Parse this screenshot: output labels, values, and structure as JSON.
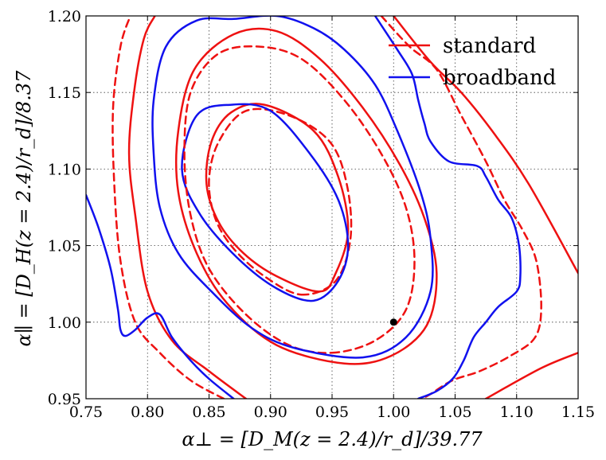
{
  "chart_data": {
    "type": "line",
    "xlabel": "α⊥ = [D_M(z = 2.4)/r_d]/39.77",
    "ylabel": "α∥ = [D_H(z = 2.4)/r_d]/8.37",
    "xlim": [
      0.75,
      1.15
    ],
    "ylim": [
      0.95,
      1.2
    ],
    "xticks": [
      "0.75",
      "0.80",
      "0.85",
      "0.90",
      "0.95",
      "1.00",
      "1.05",
      "1.10",
      "1.15"
    ],
    "yticks": [
      "0.95",
      "1.00",
      "1.05",
      "1.10",
      "1.15",
      "1.20"
    ],
    "grid": true,
    "legend_position": "top-right",
    "legend": [
      {
        "label": "standard",
        "color": "#ee1111"
      },
      {
        "label": "broadband",
        "color": "#1111ee"
      }
    ],
    "marker": {
      "x": 1.0,
      "y": 1.0,
      "color": "#000000"
    },
    "series": [
      {
        "name": "standard",
        "color": "#ee1111",
        "dashed": false,
        "points": [
          [
            0.94,
            1.02
          ],
          [
            0.953,
            1.032
          ],
          [
            0.963,
            1.06
          ],
          [
            0.955,
            1.095
          ],
          [
            0.935,
            1.125
          ],
          [
            0.895,
            1.142
          ],
          [
            0.868,
            1.137
          ],
          [
            0.852,
            1.118
          ],
          [
            0.848,
            1.09
          ],
          [
            0.858,
            1.065
          ],
          [
            0.878,
            1.045
          ],
          [
            0.905,
            1.03
          ],
          [
            0.94,
            1.02
          ]
        ]
      },
      {
        "name": "standard",
        "color": "#ee1111",
        "dashed": true,
        "points": [
          [
            0.925,
            1.018
          ],
          [
            0.953,
            1.027
          ],
          [
            0.965,
            1.055
          ],
          [
            0.962,
            1.09
          ],
          [
            0.948,
            1.118
          ],
          [
            0.915,
            1.135
          ],
          [
            0.88,
            1.138
          ],
          [
            0.858,
            1.118
          ],
          [
            0.85,
            1.093
          ],
          [
            0.855,
            1.068
          ],
          [
            0.87,
            1.048
          ],
          [
            0.895,
            1.03
          ],
          [
            0.925,
            1.018
          ]
        ]
      },
      {
        "name": "broadband",
        "color": "#1111ee",
        "dashed": false,
        "points": [
          [
            0.935,
            1.014
          ],
          [
            0.955,
            1.027
          ],
          [
            0.963,
            1.05
          ],
          [
            0.955,
            1.08
          ],
          [
            0.932,
            1.11
          ],
          [
            0.9,
            1.138
          ],
          [
            0.868,
            1.142
          ],
          [
            0.84,
            1.135
          ],
          [
            0.828,
            1.1
          ],
          [
            0.843,
            1.07
          ],
          [
            0.873,
            1.042
          ],
          [
            0.905,
            1.022
          ],
          [
            0.935,
            1.014
          ]
        ]
      },
      {
        "name": "standard",
        "color": "#ee1111",
        "dashed": false,
        "points": [
          [
            0.96,
            0.973
          ],
          [
            0.998,
            0.978
          ],
          [
            1.027,
            0.998
          ],
          [
            1.035,
            1.032
          ],
          [
            1.025,
            1.068
          ],
          [
            1.005,
            1.103
          ],
          [
            0.975,
            1.14
          ],
          [
            0.94,
            1.172
          ],
          [
            0.905,
            1.19
          ],
          [
            0.87,
            1.188
          ],
          [
            0.838,
            1.165
          ],
          [
            0.825,
            1.125
          ],
          [
            0.825,
            1.085
          ],
          [
            0.84,
            1.045
          ],
          [
            0.865,
            1.012
          ],
          [
            0.905,
            0.985
          ],
          [
            0.96,
            0.973
          ]
        ]
      },
      {
        "name": "standard",
        "color": "#ee1111",
        "dashed": true,
        "points": [
          [
            0.95,
            0.98
          ],
          [
            0.985,
            0.988
          ],
          [
            1.01,
            1.008
          ],
          [
            1.017,
            1.04
          ],
          [
            1.01,
            1.075
          ],
          [
            0.99,
            1.11
          ],
          [
            0.96,
            1.145
          ],
          [
            0.925,
            1.172
          ],
          [
            0.89,
            1.18
          ],
          [
            0.857,
            1.175
          ],
          [
            0.835,
            1.15
          ],
          [
            0.83,
            1.11
          ],
          [
            0.835,
            1.07
          ],
          [
            0.85,
            1.035
          ],
          [
            0.88,
            1.005
          ],
          [
            0.915,
            0.985
          ],
          [
            0.95,
            0.98
          ]
        ]
      },
      {
        "name": "broadband",
        "color": "#1111ee",
        "dashed": false,
        "points": [
          [
            0.975,
            0.977
          ],
          [
            1.01,
            0.99
          ],
          [
            1.03,
            1.02
          ],
          [
            1.03,
            1.055
          ],
          [
            1.022,
            1.085
          ],
          [
            1.003,
            1.125
          ],
          [
            0.985,
            1.155
          ],
          [
            0.96,
            1.178
          ],
          [
            0.935,
            1.192
          ],
          [
            0.905,
            1.2
          ],
          [
            0.87,
            1.198
          ],
          [
            0.84,
            1.197
          ],
          [
            0.815,
            1.18
          ],
          [
            0.805,
            1.145
          ],
          [
            0.805,
            1.11
          ],
          [
            0.81,
            1.075
          ],
          [
            0.825,
            1.045
          ],
          [
            0.852,
            1.02
          ],
          [
            0.885,
            0.996
          ],
          [
            0.92,
            0.983
          ],
          [
            0.975,
            0.977
          ]
        ]
      },
      {
        "name": "standard",
        "color": "#ee1111",
        "dashed": false,
        "points": [
          [
            0.88,
            0.95
          ],
          [
            0.85,
            0.968
          ],
          [
            0.82,
            0.988
          ],
          [
            0.8,
            1.02
          ],
          [
            0.79,
            1.07
          ],
          [
            0.785,
            1.11
          ],
          [
            0.789,
            1.15
          ],
          [
            0.797,
            1.185
          ],
          [
            0.806,
            1.2
          ]
        ]
      },
      {
        "name": "standard",
        "color": "#ee1111",
        "dashed": false,
        "points": [
          [
            1.0,
            1.2
          ],
          [
            1.03,
            1.17
          ],
          [
            1.055,
            1.15
          ],
          [
            1.08,
            1.125
          ],
          [
            1.11,
            1.09
          ],
          [
            1.15,
            1.032
          ]
        ]
      },
      {
        "name": "standard",
        "color": "#ee1111",
        "dashed": false,
        "points": [
          [
            1.075,
            0.95
          ],
          [
            1.12,
            0.97
          ],
          [
            1.15,
            0.98
          ]
        ]
      },
      {
        "name": "standard",
        "color": "#ee1111",
        "dashed": true,
        "points": [
          [
            0.862,
            0.95
          ],
          [
            0.835,
            0.962
          ],
          [
            0.81,
            0.98
          ],
          [
            0.79,
            1.0
          ],
          [
            0.778,
            1.04
          ],
          [
            0.773,
            1.09
          ],
          [
            0.772,
            1.14
          ],
          [
            0.778,
            1.18
          ],
          [
            0.786,
            1.2
          ]
        ]
      },
      {
        "name": "standard",
        "color": "#ee1111",
        "dashed": true,
        "points": [
          [
            0.99,
            1.2
          ],
          [
            1.013,
            1.18
          ],
          [
            1.035,
            1.165
          ],
          [
            1.055,
            1.135
          ],
          [
            1.075,
            1.105
          ],
          [
            1.09,
            1.08
          ],
          [
            1.105,
            1.06
          ],
          [
            1.116,
            1.04
          ],
          [
            1.12,
            1.01
          ],
          [
            1.115,
            0.99
          ],
          [
            1.095,
            0.978
          ],
          [
            1.07,
            0.968
          ],
          [
            1.048,
            0.962
          ],
          [
            1.03,
            0.953
          ],
          [
            1.023,
            0.95
          ]
        ]
      },
      {
        "name": "broadband",
        "color": "#1111ee",
        "dashed": false,
        "points": [
          [
            0.75,
            1.083
          ],
          [
            0.76,
            1.062
          ],
          [
            0.77,
            1.035
          ],
          [
            0.776,
            1.008
          ],
          [
            0.778,
            0.995
          ],
          [
            0.782,
            0.991
          ],
          [
            0.79,
            0.995
          ],
          [
            0.8,
            1.003
          ],
          [
            0.81,
            1.005
          ],
          [
            0.82,
            0.99
          ],
          [
            0.835,
            0.975
          ],
          [
            0.85,
            0.963
          ],
          [
            0.87,
            0.95
          ]
        ]
      },
      {
        "name": "broadband",
        "color": "#1111ee",
        "dashed": false,
        "points": [
          [
            0.985,
            1.2
          ],
          [
            1.003,
            1.178
          ],
          [
            1.015,
            1.162
          ],
          [
            1.02,
            1.145
          ],
          [
            1.025,
            1.13
          ],
          [
            1.03,
            1.118
          ],
          [
            1.045,
            1.105
          ],
          [
            1.068,
            1.102
          ],
          [
            1.075,
            1.095
          ],
          [
            1.085,
            1.08
          ],
          [
            1.096,
            1.068
          ],
          [
            1.102,
            1.05
          ],
          [
            1.103,
            1.03
          ],
          [
            1.1,
            1.02
          ],
          [
            1.085,
            1.01
          ],
          [
            1.075,
            1.0
          ],
          [
            1.065,
            0.99
          ],
          [
            1.057,
            0.975
          ],
          [
            1.048,
            0.963
          ],
          [
            1.035,
            0.955
          ],
          [
            1.02,
            0.95
          ]
        ]
      }
    ]
  }
}
